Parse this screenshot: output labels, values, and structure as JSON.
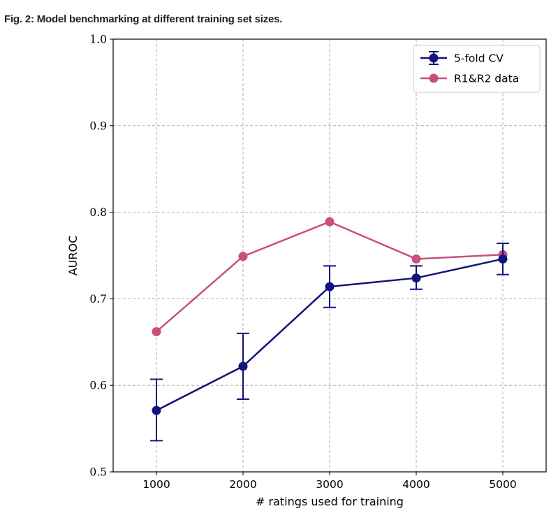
{
  "figure": {
    "caption": "Fig. 2: Model benchmarking at different training set sizes."
  },
  "chart_data": {
    "type": "line",
    "xlabel": "# ratings used for training",
    "ylabel": "AUROC",
    "x": [
      1000,
      2000,
      3000,
      4000,
      5000
    ],
    "x_ticks": [
      "1000",
      "2000",
      "3000",
      "4000",
      "5000"
    ],
    "y_ticks": [
      "0.5",
      "0.6",
      "0.7",
      "0.8",
      "0.9",
      "1.0"
    ],
    "y_tick_values": [
      0.5,
      0.6,
      0.7,
      0.8,
      0.9,
      1.0
    ],
    "xlim": [
      500,
      5500
    ],
    "ylim": [
      0.5,
      1.0
    ],
    "grid": true,
    "legend_position": "top-right",
    "series": [
      {
        "name": "5-fold CV",
        "color": "#12127d",
        "values": [
          0.571,
          0.622,
          0.714,
          0.724,
          0.746
        ],
        "error_lower": [
          0.536,
          0.584,
          0.69,
          0.711,
          0.728
        ],
        "error_upper": [
          0.607,
          0.66,
          0.738,
          0.738,
          0.764
        ]
      },
      {
        "name": "R1&R2 data",
        "color": "#c94f7c",
        "values": [
          0.662,
          0.749,
          0.789,
          0.746,
          0.751
        ]
      }
    ]
  }
}
